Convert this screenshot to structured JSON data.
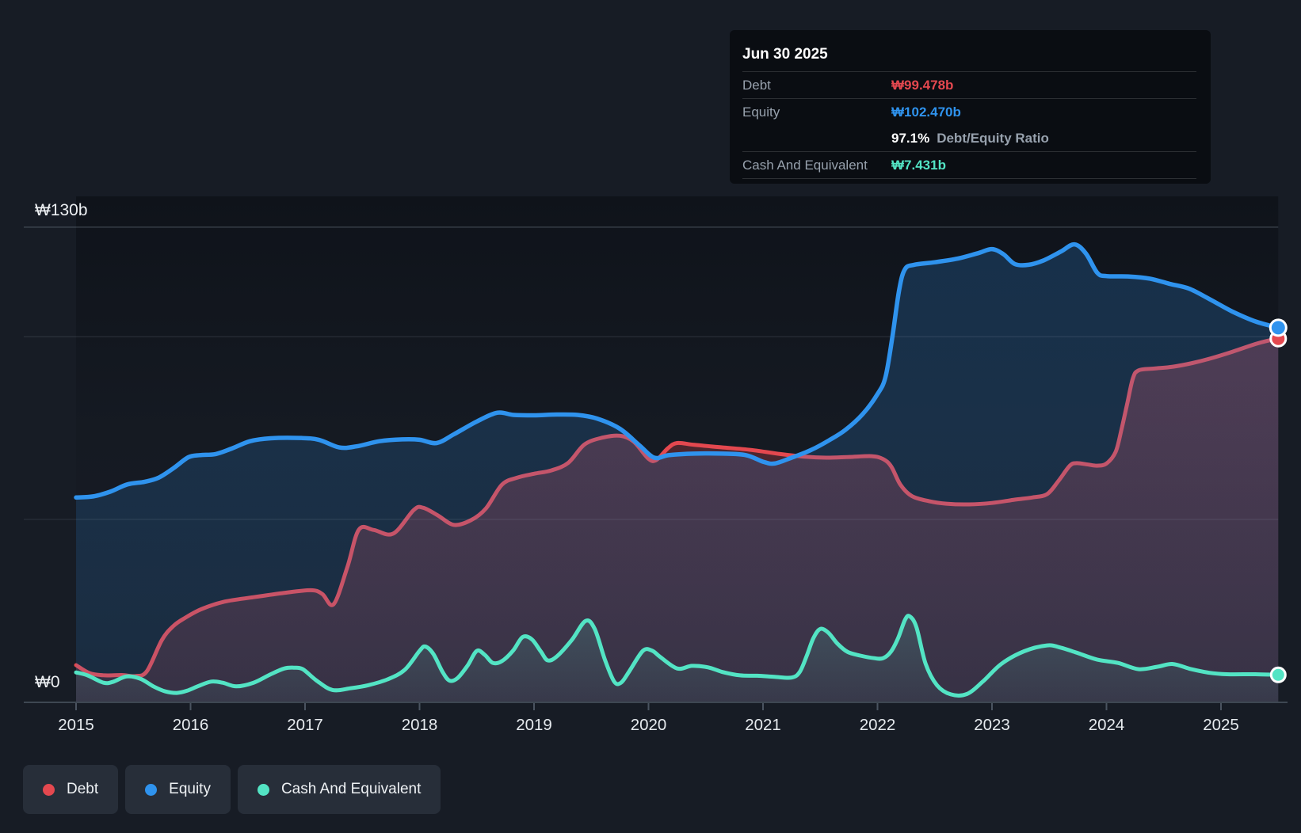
{
  "ui": {
    "background": "#171c25",
    "tooltip_bg": "#0a0d12",
    "chip_bg": "#272e39",
    "axis_color": "#3e4752",
    "text_color": "#e6eaee"
  },
  "tooltip": {
    "date": "Jun 30 2025",
    "debt": {
      "label": "Debt",
      "value": "₩99.478b"
    },
    "equity": {
      "label": "Equity",
      "value": "₩102.470b"
    },
    "ratio": {
      "value": "97.1%",
      "label": "Debt/Equity Ratio"
    },
    "cash": {
      "label": "Cash And Equivalent",
      "value": "₩7.431b"
    }
  },
  "legend": {
    "items": [
      {
        "label": "Debt"
      },
      {
        "label": "Equity"
      },
      {
        "label": "Cash And Equivalent"
      }
    ]
  },
  "chart_data": {
    "type": "area",
    "x_ticks": [
      2015,
      2016,
      2017,
      2018,
      2019,
      2020,
      2021,
      2022,
      2023,
      2024,
      2025
    ],
    "y_axis": {
      "ylim": [
        0,
        130
      ],
      "max_label": "₩130b",
      "zero_label": "₩0",
      "gridline_values": [
        130,
        100,
        50
      ]
    },
    "last_point_date": "Jun 30 2025",
    "series": [
      {
        "name": "Debt",
        "color": "#e4484f",
        "end_value": 99.478,
        "points": [
          [
            2015.0,
            10.1
          ],
          [
            2015.12,
            7.9
          ],
          [
            2015.25,
            7.3
          ],
          [
            2015.4,
            7.4
          ],
          [
            2015.52,
            7.1
          ],
          [
            2015.62,
            8.5
          ],
          [
            2015.75,
            17.0
          ],
          [
            2015.85,
            20.8
          ],
          [
            2015.95,
            23.0
          ],
          [
            2016.1,
            25.5
          ],
          [
            2016.3,
            27.5
          ],
          [
            2016.55,
            28.7
          ],
          [
            2016.8,
            29.8
          ],
          [
            2017.05,
            30.6
          ],
          [
            2017.15,
            29.6
          ],
          [
            2017.25,
            26.8
          ],
          [
            2017.37,
            37.0
          ],
          [
            2017.47,
            47.2
          ],
          [
            2017.6,
            47.1
          ],
          [
            2017.77,
            46.1
          ],
          [
            2017.95,
            52.6
          ],
          [
            2018.03,
            53.2
          ],
          [
            2018.16,
            51.1
          ],
          [
            2018.3,
            48.5
          ],
          [
            2018.45,
            49.8
          ],
          [
            2018.58,
            53.0
          ],
          [
            2018.72,
            59.5
          ],
          [
            2018.85,
            61.4
          ],
          [
            2019.0,
            62.5
          ],
          [
            2019.15,
            63.4
          ],
          [
            2019.3,
            65.5
          ],
          [
            2019.44,
            70.5
          ],
          [
            2019.6,
            72.4
          ],
          [
            2019.75,
            72.9
          ],
          [
            2019.87,
            71.3
          ],
          [
            2020.0,
            66.6
          ],
          [
            2020.07,
            66.3
          ],
          [
            2020.17,
            69.5
          ],
          [
            2020.25,
            70.9
          ],
          [
            2020.4,
            70.4
          ],
          [
            2020.65,
            69.7
          ],
          [
            2020.9,
            69.0
          ],
          [
            2021.15,
            67.9
          ],
          [
            2021.35,
            67.2
          ],
          [
            2021.55,
            66.9
          ],
          [
            2021.75,
            67.1
          ],
          [
            2021.95,
            67.3
          ],
          [
            2022.05,
            66.5
          ],
          [
            2022.12,
            64.5
          ],
          [
            2022.2,
            59.5
          ],
          [
            2022.3,
            56.4
          ],
          [
            2022.45,
            55.0
          ],
          [
            2022.6,
            54.3
          ],
          [
            2022.8,
            54.1
          ],
          [
            2023.0,
            54.5
          ],
          [
            2023.2,
            55.4
          ],
          [
            2023.35,
            56.0
          ],
          [
            2023.48,
            56.9
          ],
          [
            2023.58,
            60.5
          ],
          [
            2023.68,
            64.7
          ],
          [
            2023.74,
            65.4
          ],
          [
            2023.84,
            65.0
          ],
          [
            2023.92,
            64.7
          ],
          [
            2024.0,
            65.3
          ],
          [
            2024.08,
            68.5
          ],
          [
            2024.13,
            74.5
          ],
          [
            2024.18,
            81.5
          ],
          [
            2024.23,
            88.5
          ],
          [
            2024.28,
            90.8
          ],
          [
            2024.42,
            91.3
          ],
          [
            2024.58,
            91.8
          ],
          [
            2024.75,
            92.8
          ],
          [
            2024.9,
            94.0
          ],
          [
            2025.1,
            95.9
          ],
          [
            2025.3,
            98.0
          ],
          [
            2025.42,
            99.0
          ],
          [
            2025.5,
            99.478
          ]
        ]
      },
      {
        "name": "Equity",
        "color": "#2f93ee",
        "end_value": 102.47,
        "points": [
          [
            2015.0,
            56.0
          ],
          [
            2015.15,
            56.3
          ],
          [
            2015.3,
            57.6
          ],
          [
            2015.45,
            59.6
          ],
          [
            2015.6,
            60.3
          ],
          [
            2015.72,
            61.4
          ],
          [
            2015.85,
            64.0
          ],
          [
            2015.98,
            67.0
          ],
          [
            2016.08,
            67.6
          ],
          [
            2016.22,
            67.9
          ],
          [
            2016.36,
            69.4
          ],
          [
            2016.52,
            71.4
          ],
          [
            2016.7,
            72.2
          ],
          [
            2016.95,
            72.3
          ],
          [
            2017.12,
            71.8
          ],
          [
            2017.3,
            69.7
          ],
          [
            2017.45,
            70.0
          ],
          [
            2017.65,
            71.4
          ],
          [
            2017.85,
            71.9
          ],
          [
            2018.0,
            71.8
          ],
          [
            2018.15,
            70.9
          ],
          [
            2018.3,
            73.3
          ],
          [
            2018.5,
            76.8
          ],
          [
            2018.68,
            79.2
          ],
          [
            2018.82,
            78.6
          ],
          [
            2019.0,
            78.5
          ],
          [
            2019.2,
            78.7
          ],
          [
            2019.38,
            78.6
          ],
          [
            2019.55,
            77.6
          ],
          [
            2019.75,
            74.8
          ],
          [
            2019.92,
            70.3
          ],
          [
            2020.05,
            66.9
          ],
          [
            2020.18,
            67.6
          ],
          [
            2020.4,
            68.0
          ],
          [
            2020.65,
            68.0
          ],
          [
            2020.85,
            67.6
          ],
          [
            2021.0,
            65.8
          ],
          [
            2021.1,
            65.3
          ],
          [
            2021.25,
            66.9
          ],
          [
            2021.42,
            69.0
          ],
          [
            2021.58,
            71.7
          ],
          [
            2021.72,
            74.5
          ],
          [
            2021.87,
            78.8
          ],
          [
            2022.0,
            84.3
          ],
          [
            2022.07,
            89.0
          ],
          [
            2022.13,
            100.0
          ],
          [
            2022.19,
            113.0
          ],
          [
            2022.24,
            118.5
          ],
          [
            2022.32,
            119.7
          ],
          [
            2022.5,
            120.4
          ],
          [
            2022.7,
            121.4
          ],
          [
            2022.88,
            122.9
          ],
          [
            2023.0,
            124.0
          ],
          [
            2023.1,
            122.6
          ],
          [
            2023.2,
            119.9
          ],
          [
            2023.32,
            119.7
          ],
          [
            2023.45,
            120.9
          ],
          [
            2023.6,
            123.3
          ],
          [
            2023.72,
            125.3
          ],
          [
            2023.82,
            122.8
          ],
          [
            2023.92,
            117.5
          ],
          [
            2024.0,
            116.6
          ],
          [
            2024.2,
            116.5
          ],
          [
            2024.38,
            115.9
          ],
          [
            2024.55,
            114.5
          ],
          [
            2024.72,
            113.2
          ],
          [
            2024.9,
            110.3
          ],
          [
            2025.1,
            106.9
          ],
          [
            2025.3,
            104.2
          ],
          [
            2025.5,
            102.47
          ]
        ]
      },
      {
        "name": "Cash And Equivalent",
        "color": "#53e4c4",
        "end_value": 7.431,
        "points": [
          [
            2015.0,
            8.1
          ],
          [
            2015.1,
            7.3
          ],
          [
            2015.24,
            5.3
          ],
          [
            2015.32,
            5.5
          ],
          [
            2015.44,
            7.0
          ],
          [
            2015.56,
            6.4
          ],
          [
            2015.68,
            4.2
          ],
          [
            2015.78,
            2.9
          ],
          [
            2015.88,
            2.5
          ],
          [
            2015.97,
            3.1
          ],
          [
            2016.07,
            4.4
          ],
          [
            2016.18,
            5.6
          ],
          [
            2016.28,
            5.3
          ],
          [
            2016.4,
            4.3
          ],
          [
            2016.55,
            5.3
          ],
          [
            2016.7,
            7.6
          ],
          [
            2016.82,
            9.2
          ],
          [
            2016.9,
            9.4
          ],
          [
            2016.98,
            9.0
          ],
          [
            2017.1,
            5.9
          ],
          [
            2017.24,
            3.3
          ],
          [
            2017.4,
            3.8
          ],
          [
            2017.55,
            4.6
          ],
          [
            2017.72,
            6.2
          ],
          [
            2017.87,
            8.8
          ],
          [
            2018.0,
            14.0
          ],
          [
            2018.05,
            15.2
          ],
          [
            2018.12,
            13.2
          ],
          [
            2018.2,
            8.3
          ],
          [
            2018.26,
            5.9
          ],
          [
            2018.33,
            6.5
          ],
          [
            2018.42,
            10.0
          ],
          [
            2018.5,
            14.0
          ],
          [
            2018.57,
            12.9
          ],
          [
            2018.64,
            10.7
          ],
          [
            2018.72,
            11.2
          ],
          [
            2018.82,
            14.2
          ],
          [
            2018.9,
            17.8
          ],
          [
            2018.98,
            17.2
          ],
          [
            2019.06,
            13.8
          ],
          [
            2019.12,
            11.4
          ],
          [
            2019.2,
            12.5
          ],
          [
            2019.33,
            17.0
          ],
          [
            2019.45,
            22.2
          ],
          [
            2019.53,
            20.0
          ],
          [
            2019.62,
            11.5
          ],
          [
            2019.7,
            5.6
          ],
          [
            2019.76,
            5.3
          ],
          [
            2019.83,
            8.3
          ],
          [
            2019.95,
            14.0
          ],
          [
            2020.03,
            14.1
          ],
          [
            2020.1,
            12.4
          ],
          [
            2020.25,
            9.2
          ],
          [
            2020.38,
            9.9
          ],
          [
            2020.52,
            9.5
          ],
          [
            2020.65,
            8.2
          ],
          [
            2020.8,
            7.3
          ],
          [
            2020.95,
            7.2
          ],
          [
            2021.1,
            6.9
          ],
          [
            2021.25,
            6.7
          ],
          [
            2021.32,
            8.2
          ],
          [
            2021.38,
            12.5
          ],
          [
            2021.44,
            17.5
          ],
          [
            2021.5,
            20.0
          ],
          [
            2021.57,
            19.0
          ],
          [
            2021.65,
            16.0
          ],
          [
            2021.74,
            13.7
          ],
          [
            2021.85,
            12.7
          ],
          [
            2021.97,
            12.0
          ],
          [
            2022.05,
            12.0
          ],
          [
            2022.12,
            13.9
          ],
          [
            2022.18,
            17.5
          ],
          [
            2022.24,
            22.5
          ],
          [
            2022.28,
            23.5
          ],
          [
            2022.34,
            20.5
          ],
          [
            2022.42,
            10.5
          ],
          [
            2022.52,
            4.6
          ],
          [
            2022.64,
            2.1
          ],
          [
            2022.78,
            2.2
          ],
          [
            2022.92,
            5.6
          ],
          [
            2023.08,
            10.4
          ],
          [
            2023.28,
            13.9
          ],
          [
            2023.48,
            15.5
          ],
          [
            2023.6,
            14.9
          ],
          [
            2023.74,
            13.5
          ],
          [
            2023.92,
            11.6
          ],
          [
            2024.1,
            10.7
          ],
          [
            2024.28,
            9.0
          ],
          [
            2024.45,
            9.7
          ],
          [
            2024.58,
            10.4
          ],
          [
            2024.74,
            9.0
          ],
          [
            2024.9,
            8.0
          ],
          [
            2025.05,
            7.6
          ],
          [
            2025.3,
            7.6
          ],
          [
            2025.5,
            7.431
          ]
        ]
      }
    ]
  }
}
